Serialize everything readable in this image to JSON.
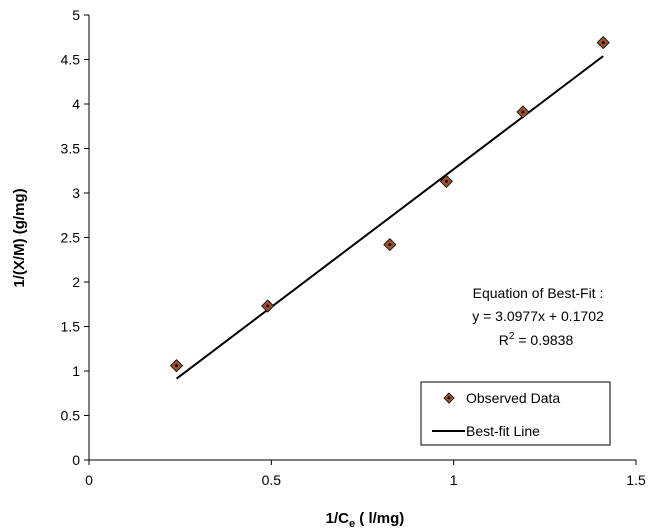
{
  "chart_data": {
    "type": "scatter",
    "xlabel": {
      "main": "1/C",
      "sub": "e",
      "tail": " ( l/mg)"
    },
    "ylabel": "1/(X/M) (g/mg)",
    "xlim": [
      0,
      1.5
    ],
    "ylim": [
      0,
      5
    ],
    "x_ticks": [
      "0",
      "0.5",
      "1",
      "1.5"
    ],
    "x_tick_values": [
      0,
      0.5,
      1,
      1.5
    ],
    "y_ticks": [
      "0",
      "0.5",
      "1",
      "1.5",
      "2",
      "2.5",
      "3",
      "3.5",
      "4",
      "4.5",
      "5"
    ],
    "y_tick_values": [
      0,
      0.5,
      1,
      1.5,
      2,
      2.5,
      3,
      3.5,
      4,
      4.5,
      5
    ],
    "grid": false,
    "series": [
      {
        "name": "Observed Data",
        "kind": "points",
        "marker": "diamond",
        "color": "#A0522D",
        "edge_color": "#000000",
        "x": [
          0.24,
          0.49,
          0.825,
          0.98,
          1.19,
          1.41
        ],
        "y": [
          1.06,
          1.73,
          2.42,
          3.13,
          3.91,
          4.69
        ]
      },
      {
        "name": "Best-fit Line",
        "kind": "line",
        "color": "#000000",
        "x": [
          0.24,
          1.41
        ],
        "y": [
          0.9137,
          4.538
        ]
      }
    ],
    "annotation": {
      "line1": "Equation of Best-Fit :",
      "line2": "y = 3.0977x + 0.1702",
      "line3_main": "R",
      "line3_sup": "2",
      "line3_tail": " = 0.9838"
    },
    "legend_position": "bottom-right"
  }
}
